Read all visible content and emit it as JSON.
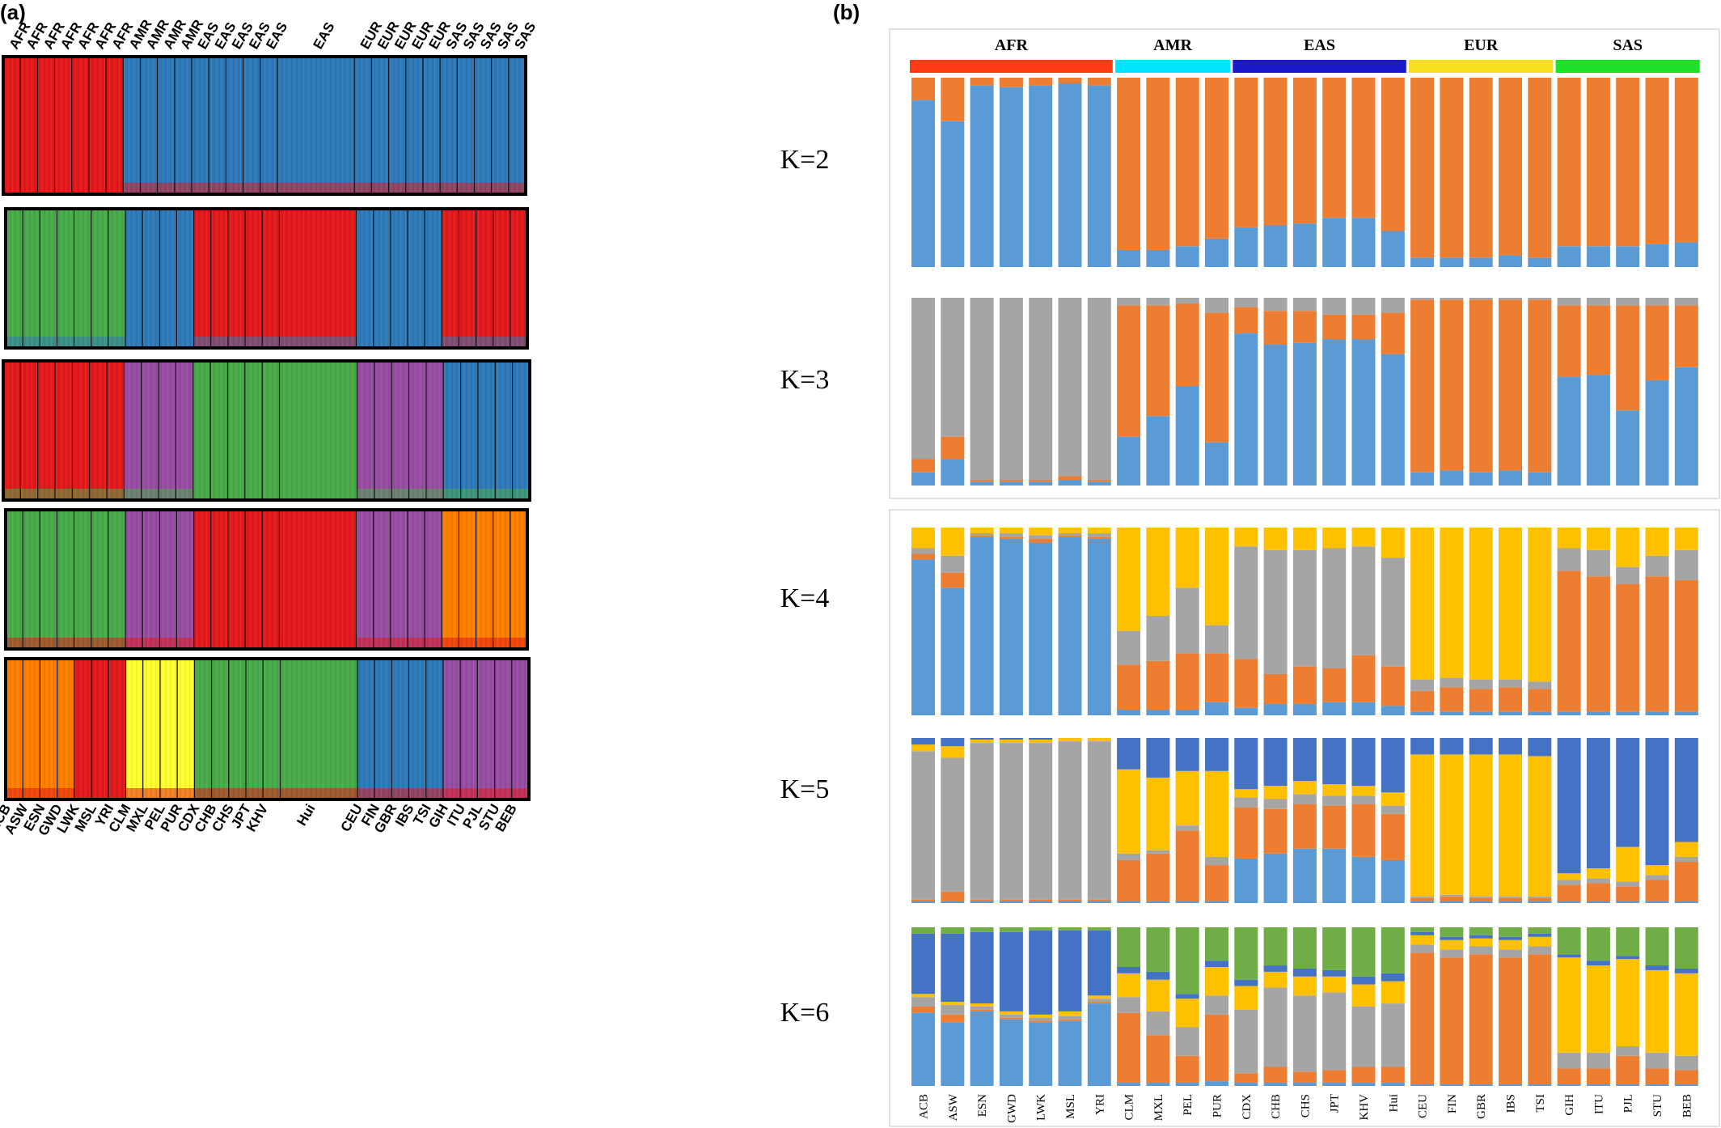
{
  "panel_a_label": "(a)",
  "panel_b_label": "(b)",
  "panel_a": {
    "top_labels": [
      "AFR",
      "AFR",
      "AFR",
      "AFR",
      "AFR",
      "AFR",
      "AFR",
      "AMR",
      "AMR",
      "AMR",
      "AMR",
      "EAS",
      "EAS",
      "EAS",
      "EAS",
      "EAS",
      "EAS",
      "EUR",
      "EUR",
      "EUR",
      "EUR",
      "EUR",
      "SAS",
      "SAS",
      "SAS",
      "SAS",
      "SAS"
    ],
    "bottom_labels": [
      "ACB",
      "ASW",
      "ESN",
      "GWD",
      "LWK",
      "MSL",
      "YRI",
      "CLM",
      "MXL",
      "PEL",
      "PUR",
      "CDX",
      "CHB",
      "CHS",
      "JPT",
      "KHV",
      "Hui",
      "CEU",
      "FIN",
      "GBR",
      "IBS",
      "TSI",
      "GIH",
      "ITU",
      "PJL",
      "STU",
      "BEB"
    ]
  },
  "k_labels": [
    "K=2",
    "K=3",
    "K=4",
    "K=5",
    "K=6"
  ],
  "colors": {
    "red": "#e31a1c",
    "blue": "#2f7ab9",
    "green": "#4aab4a",
    "purple": "#984ea3",
    "orange": "#ff7f00",
    "yellow": "#ffff33",
    "b_blue": "#5b9bd5",
    "b_orange": "#ed7d31",
    "b_gray": "#a5a5a5",
    "b_yellow": "#ffc000",
    "b_dark": "#4472c4",
    "b_green": "#70ad47",
    "sup_AFR": "#ff3a17",
    "sup_AMR": "#00e5ff",
    "sup_EAS": "#1c19c8",
    "sup_EUR": "#f4e01f",
    "sup_SAS": "#1ee22a"
  },
  "chart_data": [
    {
      "type": "bar",
      "title": "",
      "description_note": "",
      "categories": [
        "ACB",
        "ASW",
        "ESN",
        "GWD",
        "LWK",
        "MSL",
        "YRI",
        "CLM",
        "MXL",
        "PEL",
        "PUR",
        "CDX",
        "CHB",
        "CHS",
        "JPT",
        "KHV",
        "Hui",
        "CEU",
        "FIN",
        "GBR",
        "IBS",
        "TSI",
        "GIH",
        "ITU",
        "PJL",
        "STU",
        "BEB"
      ],
      "superpopulations": [
        {
          "name": "AFR",
          "count": 7
        },
        {
          "name": "AMR",
          "count": 4
        },
        {
          "name": "EAS",
          "count": 6
        },
        {
          "name": "EUR",
          "count": 5
        },
        {
          "name": "SAS",
          "count": 5
        }
      ],
      "panels": [
        {
          "k": "K=2",
          "components": [
            {
              "color": "b_blue",
              "values": [
                0.88,
                0.77,
                0.96,
                0.95,
                0.96,
                0.97,
                0.96,
                0.09,
                0.09,
                0.11,
                0.15,
                0.21,
                0.22,
                0.23,
                0.26,
                0.26,
                0.19,
                0.05,
                0.05,
                0.05,
                0.06,
                0.05,
                0.11,
                0.11,
                0.11,
                0.12,
                0.13
              ]
            },
            {
              "color": "b_orange",
              "values": [
                0.12,
                0.23,
                0.04,
                0.05,
                0.04,
                0.03,
                0.04,
                0.91,
                0.91,
                0.89,
                0.85,
                0.79,
                0.78,
                0.77,
                0.74,
                0.74,
                0.81,
                0.95,
                0.95,
                0.95,
                0.94,
                0.95,
                0.89,
                0.89,
                0.89,
                0.88,
                0.87
              ]
            }
          ]
        },
        {
          "k": "K=3",
          "components": [
            {
              "color": "b_blue",
              "values": [
                0.07,
                0.14,
                0.02,
                0.02,
                0.02,
                0.03,
                0.02,
                0.26,
                0.37,
                0.53,
                0.23,
                0.81,
                0.75,
                0.76,
                0.78,
                0.78,
                0.7,
                0.07,
                0.08,
                0.07,
                0.08,
                0.07,
                0.58,
                0.59,
                0.4,
                0.56,
                0.63
              ]
            },
            {
              "color": "b_orange",
              "values": [
                0.07,
                0.12,
                0.01,
                0.01,
                0.01,
                0.02,
                0.01,
                0.7,
                0.59,
                0.44,
                0.69,
                0.14,
                0.18,
                0.17,
                0.13,
                0.13,
                0.22,
                0.92,
                0.91,
                0.92,
                0.91,
                0.92,
                0.38,
                0.37,
                0.56,
                0.4,
                0.33
              ]
            },
            {
              "color": "b_gray",
              "values": [
                0.86,
                0.74,
                0.97,
                0.97,
                0.97,
                0.95,
                0.97,
                0.04,
                0.04,
                0.03,
                0.08,
                0.05,
                0.07,
                0.07,
                0.09,
                0.09,
                0.08,
                0.01,
                0.01,
                0.01,
                0.01,
                0.01,
                0.04,
                0.04,
                0.04,
                0.04,
                0.04
              ]
            }
          ]
        },
        {
          "k": "K=4",
          "components": [
            {
              "color": "b_blue",
              "values": [
                0.83,
                0.68,
                0.95,
                0.94,
                0.92,
                0.95,
                0.94,
                0.03,
                0.03,
                0.03,
                0.07,
                0.04,
                0.06,
                0.06,
                0.07,
                0.07,
                0.05,
                0.02,
                0.02,
                0.02,
                0.02,
                0.02,
                0.02,
                0.02,
                0.02,
                0.02,
                0.02
              ]
            },
            {
              "color": "b_orange",
              "values": [
                0.03,
                0.08,
                0.01,
                0.01,
                0.02,
                0.01,
                0.01,
                0.24,
                0.26,
                0.3,
                0.26,
                0.26,
                0.16,
                0.2,
                0.18,
                0.25,
                0.21,
                0.11,
                0.13,
                0.12,
                0.13,
                0.12,
                0.75,
                0.72,
                0.68,
                0.72,
                0.7
              ]
            },
            {
              "color": "b_gray",
              "values": [
                0.03,
                0.09,
                0.01,
                0.02,
                0.02,
                0.01,
                0.02,
                0.18,
                0.24,
                0.35,
                0.15,
                0.6,
                0.66,
                0.62,
                0.64,
                0.58,
                0.58,
                0.06,
                0.05,
                0.05,
                0.04,
                0.04,
                0.12,
                0.14,
                0.09,
                0.11,
                0.16
              ]
            },
            {
              "color": "b_yellow",
              "values": [
                0.11,
                0.15,
                0.03,
                0.03,
                0.04,
                0.03,
                0.03,
                0.55,
                0.47,
                0.32,
                0.52,
                0.1,
                0.12,
                0.12,
                0.11,
                0.1,
                0.16,
                0.81,
                0.8,
                0.81,
                0.81,
                0.82,
                0.11,
                0.12,
                0.21,
                0.15,
                0.12
              ]
            }
          ]
        },
        {
          "k": "K=5",
          "components": [
            {
              "color": "b_blue",
              "values": [
                0.01,
                0.01,
                0.01,
                0.01,
                0.01,
                0.01,
                0.01,
                0.01,
                0.01,
                0.01,
                0.01,
                0.27,
                0.3,
                0.33,
                0.33,
                0.28,
                0.26,
                0.01,
                0.01,
                0.01,
                0.01,
                0.01,
                0.01,
                0.01,
                0.01,
                0.01,
                0.01
              ]
            },
            {
              "color": "b_orange",
              "values": [
                0.01,
                0.06,
                0.01,
                0.01,
                0.01,
                0.01,
                0.01,
                0.25,
                0.29,
                0.43,
                0.22,
                0.31,
                0.27,
                0.27,
                0.26,
                0.32,
                0.28,
                0.02,
                0.03,
                0.02,
                0.02,
                0.02,
                0.1,
                0.11,
                0.09,
                0.13,
                0.24
              ]
            },
            {
              "color": "b_gray",
              "values": [
                0.9,
                0.81,
                0.95,
                0.95,
                0.95,
                0.96,
                0.96,
                0.04,
                0.02,
                0.03,
                0.05,
                0.06,
                0.06,
                0.06,
                0.06,
                0.05,
                0.05,
                0.01,
                0.01,
                0.01,
                0.01,
                0.01,
                0.03,
                0.03,
                0.03,
                0.03,
                0.03
              ]
            },
            {
              "color": "b_yellow",
              "values": [
                0.04,
                0.07,
                0.02,
                0.02,
                0.02,
                0.02,
                0.02,
                0.51,
                0.44,
                0.33,
                0.52,
                0.05,
                0.08,
                0.08,
                0.07,
                0.06,
                0.08,
                0.86,
                0.85,
                0.86,
                0.86,
                0.85,
                0.04,
                0.06,
                0.21,
                0.06,
                0.09
              ]
            },
            {
              "color": "b_dark",
              "values": [
                0.04,
                0.05,
                0.01,
                0.01,
                0.01,
                0.0,
                0.0,
                0.19,
                0.24,
                0.2,
                0.2,
                0.31,
                0.29,
                0.26,
                0.28,
                0.29,
                0.33,
                0.1,
                0.1,
                0.1,
                0.1,
                0.11,
                0.82,
                0.79,
                0.66,
                0.77,
                0.63
              ]
            }
          ]
        },
        {
          "k": "K=6",
          "components": [
            {
              "color": "b_blue",
              "values": [
                0.46,
                0.4,
                0.47,
                0.42,
                0.4,
                0.41,
                0.52,
                0.02,
                0.02,
                0.02,
                0.03,
                0.02,
                0.02,
                0.02,
                0.02,
                0.02,
                0.02,
                0.01,
                0.01,
                0.01,
                0.01,
                0.01,
                0.01,
                0.01,
                0.01,
                0.01,
                0.01
              ]
            },
            {
              "color": "b_orange",
              "values": [
                0.04,
                0.05,
                0.01,
                0.01,
                0.01,
                0.01,
                0.01,
                0.44,
                0.3,
                0.17,
                0.42,
                0.06,
                0.1,
                0.07,
                0.08,
                0.1,
                0.1,
                0.83,
                0.8,
                0.82,
                0.8,
                0.82,
                0.1,
                0.1,
                0.18,
                0.1,
                0.09
              ]
            },
            {
              "color": "b_gray",
              "values": [
                0.06,
                0.06,
                0.02,
                0.02,
                0.02,
                0.02,
                0.02,
                0.1,
                0.15,
                0.18,
                0.12,
                0.4,
                0.5,
                0.48,
                0.49,
                0.38,
                0.4,
                0.05,
                0.05,
                0.05,
                0.05,
                0.05,
                0.1,
                0.1,
                0.06,
                0.1,
                0.09
              ]
            },
            {
              "color": "b_yellow",
              "values": [
                0.02,
                0.02,
                0.02,
                0.02,
                0.02,
                0.03,
                0.02,
                0.15,
                0.2,
                0.18,
                0.18,
                0.15,
                0.1,
                0.12,
                0.1,
                0.14,
                0.14,
                0.06,
                0.06,
                0.05,
                0.06,
                0.06,
                0.6,
                0.55,
                0.55,
                0.52,
                0.52
              ]
            },
            {
              "color": "b_dark",
              "values": [
                0.38,
                0.43,
                0.45,
                0.5,
                0.53,
                0.51,
                0.41,
                0.04,
                0.05,
                0.03,
                0.04,
                0.04,
                0.04,
                0.05,
                0.04,
                0.05,
                0.05,
                0.02,
                0.02,
                0.02,
                0.02,
                0.02,
                0.02,
                0.03,
                0.02,
                0.03,
                0.03
              ]
            },
            {
              "color": "b_green",
              "values": [
                0.04,
                0.04,
                0.03,
                0.03,
                0.02,
                0.02,
                0.02,
                0.25,
                0.28,
                0.42,
                0.21,
                0.33,
                0.24,
                0.26,
                0.27,
                0.31,
                0.29,
                0.03,
                0.06,
                0.05,
                0.06,
                0.04,
                0.17,
                0.21,
                0.18,
                0.24,
                0.26
              ]
            }
          ]
        }
      ]
    }
  ]
}
